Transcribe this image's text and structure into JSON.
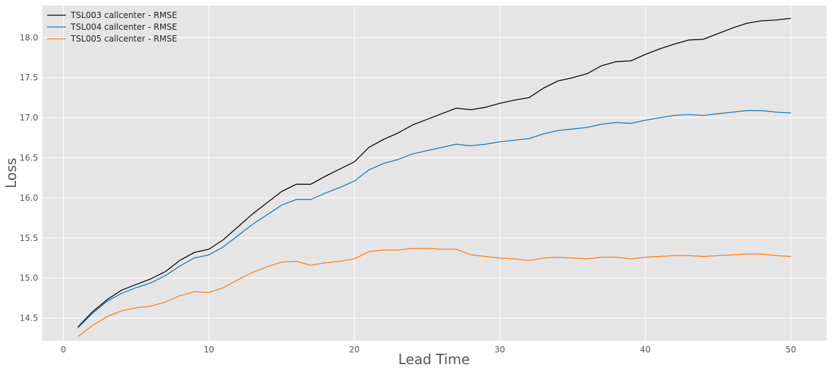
{
  "chart_data": {
    "type": "line",
    "title": "",
    "xlabel": "Lead Time",
    "ylabel": "Loss",
    "xlim": [
      -1.45,
      52.45
    ],
    "ylim": [
      14.22,
      18.4
    ],
    "xticks": [
      0,
      10,
      20,
      30,
      40,
      50
    ],
    "yticks": [
      14.5,
      15.0,
      15.5,
      16.0,
      16.5,
      17.0,
      17.5,
      18.0
    ],
    "xtick_labels": [
      "0",
      "10",
      "20",
      "30",
      "40",
      "50"
    ],
    "ytick_labels": [
      "14.5",
      "15.0",
      "15.5",
      "16.0",
      "16.5",
      "17.0",
      "17.5",
      "18.0"
    ],
    "grid": true,
    "legend_position": "upper-left",
    "style": {
      "plot_background": "#e5e5e5",
      "grid_color": "#ffffff"
    },
    "x": [
      1,
      2,
      3,
      4,
      5,
      6,
      7,
      8,
      9,
      10,
      11,
      12,
      13,
      14,
      15,
      16,
      17,
      18,
      19,
      20,
      21,
      22,
      23,
      24,
      25,
      26,
      27,
      28,
      29,
      30,
      31,
      32,
      33,
      34,
      35,
      36,
      37,
      38,
      39,
      40,
      41,
      42,
      43,
      44,
      45,
      46,
      47,
      48,
      49,
      50
    ],
    "series": [
      {
        "name": "TSL003 callcenter - RMSE",
        "color": "#000000",
        "values": [
          14.39,
          14.58,
          14.73,
          14.85,
          14.92,
          14.99,
          15.08,
          15.22,
          15.32,
          15.36,
          15.48,
          15.64,
          15.8,
          15.94,
          16.08,
          16.17,
          16.17,
          16.27,
          16.36,
          16.45,
          16.63,
          16.73,
          16.81,
          16.91,
          16.98,
          17.05,
          17.12,
          17.1,
          17.13,
          17.18,
          17.22,
          17.25,
          17.37,
          17.46,
          17.5,
          17.55,
          17.65,
          17.7,
          17.71,
          17.79,
          17.86,
          17.92,
          17.97,
          17.98,
          18.05,
          18.12,
          18.18,
          18.21,
          18.22,
          18.24
        ]
      },
      {
        "name": "TSL004 callcenter - RMSE",
        "color": "#1f77b4",
        "values": [
          14.38,
          14.56,
          14.71,
          14.81,
          14.88,
          14.94,
          15.03,
          15.15,
          15.25,
          15.29,
          15.39,
          15.53,
          15.67,
          15.79,
          15.91,
          15.98,
          15.98,
          16.06,
          16.13,
          16.21,
          16.35,
          16.43,
          16.48,
          16.55,
          16.59,
          16.63,
          16.67,
          16.65,
          16.67,
          16.7,
          16.72,
          16.74,
          16.8,
          16.84,
          16.86,
          16.88,
          16.92,
          16.94,
          16.93,
          16.97,
          17.0,
          17.03,
          17.04,
          17.03,
          17.05,
          17.07,
          17.09,
          17.09,
          17.07,
          17.06
        ]
      },
      {
        "name": "TSL005 callcenter - RMSE",
        "color": "#ff7f0e",
        "values": [
          14.27,
          14.41,
          14.52,
          14.59,
          14.63,
          14.65,
          14.7,
          14.78,
          14.83,
          14.82,
          14.88,
          14.98,
          15.07,
          15.14,
          15.2,
          15.21,
          15.16,
          15.19,
          15.21,
          15.24,
          15.33,
          15.35,
          15.35,
          15.37,
          15.37,
          15.36,
          15.36,
          15.29,
          15.27,
          15.25,
          15.24,
          15.22,
          15.25,
          15.26,
          15.25,
          15.24,
          15.26,
          15.26,
          15.24,
          15.26,
          15.27,
          15.28,
          15.28,
          15.27,
          15.28,
          15.29,
          15.3,
          15.3,
          15.28,
          15.27
        ]
      }
    ]
  }
}
